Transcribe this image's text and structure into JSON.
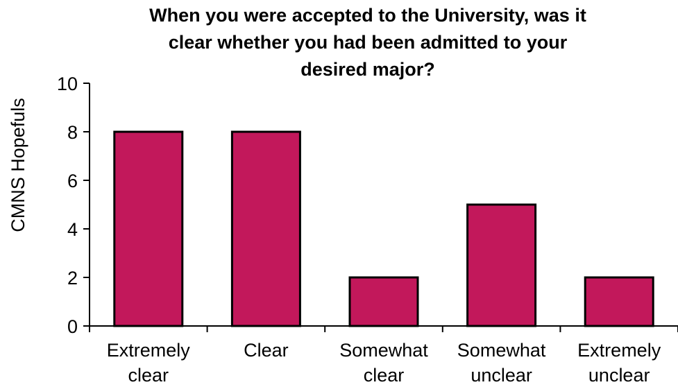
{
  "chart_data": {
    "type": "bar",
    "title_lines": [
      "When you were accepted to the University, was it",
      "clear whether you had been admitted to your",
      "desired major?"
    ],
    "xlabel": "",
    "ylabel": "CMNS Hopefuls",
    "categories": [
      [
        "Extremely",
        "clear"
      ],
      [
        "Clear"
      ],
      [
        "Somewhat",
        "clear"
      ],
      [
        "Somewhat",
        "unclear"
      ],
      [
        "Extremely",
        "unclear"
      ]
    ],
    "values": [
      8,
      8,
      2,
      5,
      2
    ],
    "ylim": [
      0,
      10
    ],
    "yticks": [
      "0",
      "2",
      "4",
      "6",
      "8",
      "10"
    ],
    "grid": false,
    "legend": "none",
    "colors": {
      "bar_fill": "#C2185B",
      "bar_stroke": "#000000",
      "axis": "#000000"
    }
  }
}
